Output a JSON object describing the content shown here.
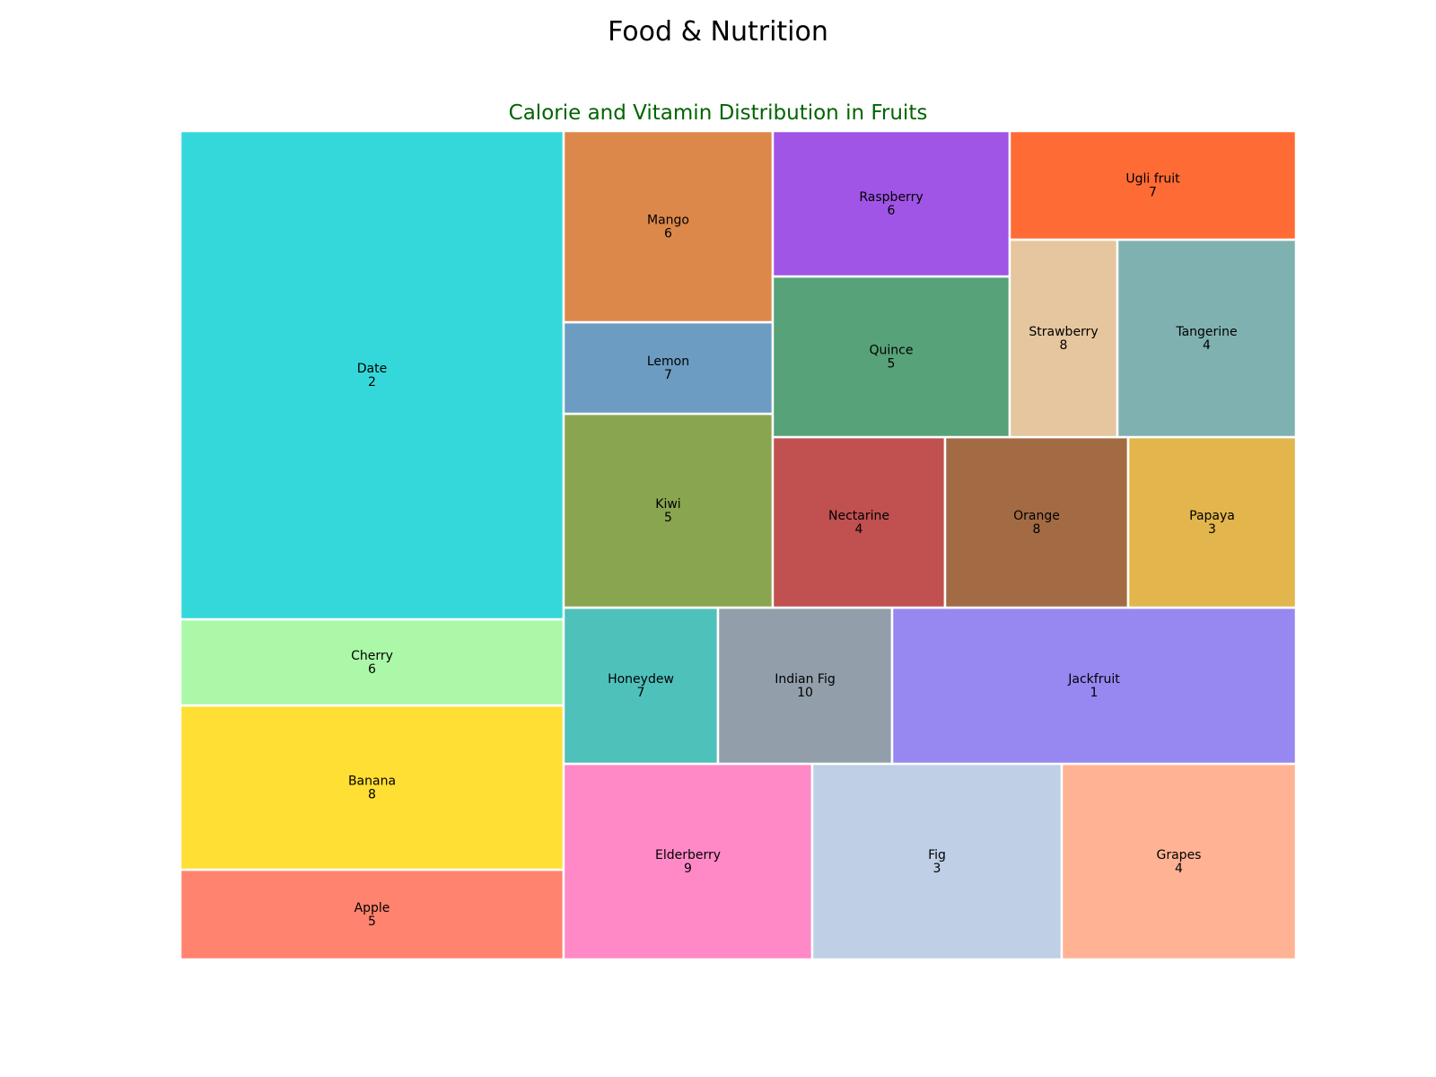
{
  "page": {
    "suptitle": "Food & Nutrition",
    "subtitle": "Calorie and Vitamin Distribution in Fruits",
    "subtitle_color": "#006400"
  },
  "chart_data": {
    "type": "treemap",
    "title": "Calorie and Vitamin Distribution in Fruits",
    "value_meaning": "Rectangle area proportional to calories; number shown is the second value per fruit (vitamin score)",
    "items": [
      {
        "name": "Apple",
        "label_value": 5,
        "area": 52,
        "color": "#ff836f"
      },
      {
        "name": "Banana",
        "label_value": 8,
        "area": 96,
        "color": "#ffdf33"
      },
      {
        "name": "Cherry",
        "label_value": 6,
        "area": 50,
        "color": "#abf9a8"
      },
      {
        "name": "Date",
        "label_value": 2,
        "area": 282,
        "color": "#35d8da"
      },
      {
        "name": "Elderberry",
        "label_value": 9,
        "area": 73,
        "color": "#ff89c6"
      },
      {
        "name": "Fig",
        "label_value": 3,
        "area": 74,
        "color": "#bfcfe5"
      },
      {
        "name": "Grapes",
        "label_value": 4,
        "area": 69,
        "color": "#ffb394"
      },
      {
        "name": "Honeydew",
        "label_value": 7,
        "area": 36,
        "color": "#4fc1bb"
      },
      {
        "name": "Indian Fig",
        "label_value": 10,
        "area": 41,
        "color": "#929fab"
      },
      {
        "name": "Jackfruit",
        "label_value": 1,
        "area": 95,
        "color": "#9787f1"
      },
      {
        "name": "Kiwi",
        "label_value": 5,
        "area": 61,
        "color": "#8aa54f"
      },
      {
        "name": "Lemon",
        "label_value": 7,
        "area": 29,
        "color": "#6c9cc2"
      },
      {
        "name": "Mango",
        "label_value": 6,
        "area": 60,
        "color": "#dc884b"
      },
      {
        "name": "Nectarine",
        "label_value": 4,
        "area": 44,
        "color": "#c15050"
      },
      {
        "name": "Orange",
        "label_value": 8,
        "area": 47,
        "color": "#a36b44"
      },
      {
        "name": "Papaya",
        "label_value": 3,
        "area": 43,
        "color": "#e2b64d"
      },
      {
        "name": "Quince",
        "label_value": 5,
        "area": 57,
        "color": "#57a278"
      },
      {
        "name": "Raspberry",
        "label_value": 6,
        "area": 52,
        "color": "#a055e6"
      },
      {
        "name": "Strawberry",
        "label_value": 8,
        "area": 32,
        "color": "#e5c69e"
      },
      {
        "name": "Tangerine",
        "label_value": 4,
        "area": 53,
        "color": "#80b1b1"
      },
      {
        "name": "Ugli fruit",
        "label_value": 7,
        "area": 47,
        "color": "#ff6b35"
      }
    ]
  }
}
